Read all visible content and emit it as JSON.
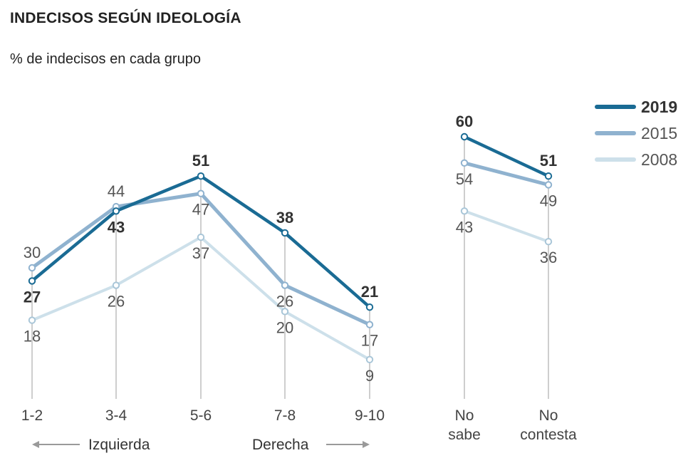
{
  "title": "INDECISOS SEGÚN IDEOLOGÍA",
  "subtitle": "% de indecisos en cada grupo",
  "chart_data": {
    "type": "line",
    "title": "INDECISOS SEGÚN IDEOLOGÍA",
    "subtitle": "% de indecisos en cada grupo",
    "ylim": [
      0,
      60
    ],
    "grid": false,
    "legend_position": "top-right",
    "panels": [
      {
        "name": "ideology",
        "categories": [
          "1-2",
          "3-4",
          "5-6",
          "7-8",
          "9-10"
        ],
        "series": [
          {
            "name": "2019",
            "values": [
              27,
              43,
              51,
              38,
              21
            ]
          },
          {
            "name": "2015",
            "values": [
              30,
              44,
              47,
              26,
              17
            ]
          },
          {
            "name": "2008",
            "values": [
              18,
              26,
              37,
              20,
              9
            ]
          }
        ]
      },
      {
        "name": "no-answer",
        "categories": [
          "No sabe",
          "No contesta"
        ],
        "category_lines": [
          [
            "No",
            "sabe"
          ],
          [
            "No",
            "contesta"
          ]
        ],
        "series": [
          {
            "name": "2019",
            "values": [
              60,
              51
            ]
          },
          {
            "name": "2015",
            "values": [
              54,
              49
            ]
          },
          {
            "name": "2008",
            "values": [
              43,
              36
            ]
          }
        ]
      }
    ],
    "axis_annotations": {
      "left": "Izquierda",
      "right": "Derecha"
    },
    "legend": [
      "2019",
      "2015",
      "2008"
    ],
    "colors": {
      "2019": "#1a6b94",
      "2015": "#8fb2cf",
      "2008": "#cde0ea"
    }
  }
}
